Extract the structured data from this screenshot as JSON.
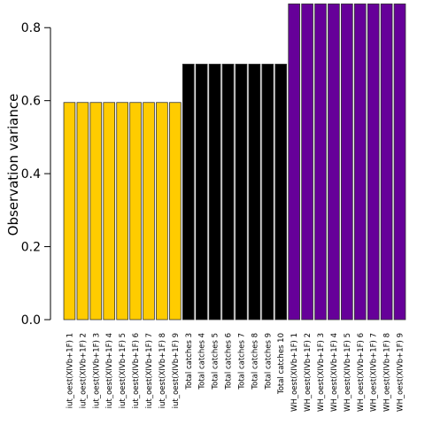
{
  "chart_data": {
    "type": "bar",
    "ylabel": "Observation variance",
    "xlabel": "",
    "ylim": [
      0,
      0.86
    ],
    "yticks": [
      "0.0",
      "0.2",
      "0.4",
      "0.6",
      "0.8"
    ],
    "ytick_values": [
      0,
      0.2,
      0.4,
      0.6,
      0.8
    ],
    "grid": false,
    "categories": [
      "iut_oest(XIVb+1F) 1",
      "iut_oest(XIVb+1F) 2",
      "iut_oest(XIVb+1F) 3",
      "iut_oest(XIVb+1F) 4",
      "iut_oest(XIVb+1F) 5",
      "iut_oest(XIVb+1F) 6",
      "iut_oest(XIVb+1F) 7",
      "iut_oest(XIVb+1F) 8",
      "iut_oest(XIVb+1F) 9",
      "Total catches 3",
      "Total catches 4",
      "Total catches 5",
      "Total catches 6",
      "Total catches 7",
      "Total catches 8",
      "Total catches 9",
      "Total catches 10",
      "WH_oest(XIVb+1F) 1",
      "WH_oest(XIVb+1F) 2",
      "WH_oest(XIVb+1F) 3",
      "WH_oest(XIVb+1F) 4",
      "WH_oest(XIVb+1F) 5",
      "WH_oest(XIVb+1F) 6",
      "WH_oest(XIVb+1F) 7",
      "WH_oest(XIVb+1F) 8",
      "WH_oest(XIVb+1F) 9"
    ],
    "values": [
      0.595,
      0.595,
      0.595,
      0.595,
      0.595,
      0.595,
      0.595,
      0.595,
      0.595,
      0.7,
      0.7,
      0.7,
      0.7,
      0.7,
      0.7,
      0.7,
      0.7,
      0.865,
      0.865,
      0.865,
      0.865,
      0.865,
      0.865,
      0.865,
      0.865,
      0.865
    ],
    "bar_colors": [
      "#FFCC00",
      "#FFCC00",
      "#FFCC00",
      "#FFCC00",
      "#FFCC00",
      "#FFCC00",
      "#FFCC00",
      "#FFCC00",
      "#FFCC00",
      "#000000",
      "#000000",
      "#000000",
      "#000000",
      "#000000",
      "#000000",
      "#000000",
      "#000000",
      "#660099",
      "#660099",
      "#660099",
      "#660099",
      "#660099",
      "#660099",
      "#660099",
      "#660099",
      "#660099"
    ]
  }
}
